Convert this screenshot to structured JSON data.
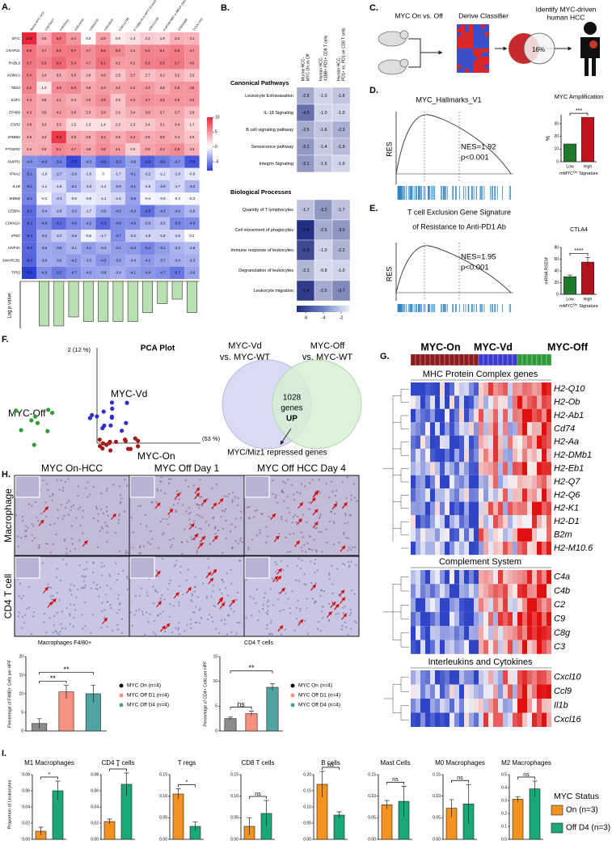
{
  "panel_a": {
    "label": "A.",
    "columns": [
      "Murine MYC-HCC",
      "GSE76427",
      "GSE36411",
      "GSE14564",
      "GSE62232",
      "GSE19665",
      "GSE112790",
      "E-TABM-36.A-AFFY-33.test3",
      "GSE121248",
      "E-MTAB-8887.A-MEXP-2320",
      "GSE63898",
      "TCGA LIHC"
    ],
    "rows": [
      "MYC",
      "CKAP2L",
      "RABL6",
      "KDM1A",
      "TBX3",
      "E2F1",
      "EP400",
      "ESR2",
      "ERBB2",
      "PTGER2",
      "NUPR1",
      "IFNA2",
      "IL1B",
      "IKBKB",
      "CEBPA",
      "CDKN2A",
      "IFNG",
      "HNF4A",
      "SMARCB1",
      "TP53"
    ],
    "cells": [
      [
        "10.6",
        "3.6",
        "5.8",
        "4.4",
        "0.3",
        "3.9",
        "0.9",
        "1.4",
        "2.2",
        "1.9",
        "3.3",
        "3.1"
      ],
      [
        "5.9",
        "4.7",
        "5.6",
        "5.7",
        "4.7",
        "5.6",
        "5.0",
        "4.1",
        "5.2",
        "5.1",
        "5.5",
        "4.7"
      ],
      [
        "5.7",
        "5.3",
        "6.4",
        "5.4",
        "4.7",
        "6.1",
        "4.2",
        "4.2",
        "5.3",
        "5.5",
        "5.7",
        "4.6"
      ],
      [
        "5.4",
        "3.4",
        "3.5",
        "3.9",
        "2.8",
        "4.0",
        "2.5",
        "3.7",
        "2.7",
        "3.2",
        "3.2",
        "2.5"
      ],
      [
        "5.2",
        "1.0",
        "4.8",
        "5.0",
        "3.8",
        "4.3",
        "4.0",
        "4.2",
        "4.3",
        "3.6",
        "4.5",
        "4.5"
      ],
      [
        "4.4",
        "3.5",
        "4.1",
        "3.4",
        "4.0",
        "4.9",
        "2.5",
        "4.3",
        "4.7",
        "4.5",
        "4.5",
        "4.4"
      ],
      [
        "4.3",
        "3.5",
        "4.2",
        "3.8",
        "3.3",
        "3.9",
        "2.6",
        "3.4",
        "3.9",
        "3.7",
        "3.7",
        "2.8"
      ],
      [
        "3.8",
        "3.2",
        "3.3",
        "1.5",
        "1.3",
        "1.4",
        "2.2",
        "2.3",
        "2.4",
        "3.1",
        "3.4",
        "1.7"
      ],
      [
        "3.6",
        "3.4",
        "8.3",
        "3.8",
        "3.5",
        "4.4",
        "3.5",
        "4.4",
        "3.5",
        "3.8",
        "3.4",
        "2.5"
      ],
      [
        "3.4",
        "3.6",
        "5.1",
        "4.7",
        "3.8",
        "4.8",
        "4.1",
        "2.0",
        "3.9",
        "4.4",
        "4.9",
        "3.3"
      ],
      [
        "-4.6",
        "-4.9",
        "-5.3",
        "-7.6",
        "-4.3",
        "-6.0",
        "-5.3",
        "-3.9",
        "-6.6",
        "-5.6",
        "-4.7",
        "-7.0"
      ],
      [
        "-5.1",
        "-1.0",
        "-2.7",
        "-2.9",
        "-1.6",
        "0",
        "-1.7",
        "-4.1",
        "-2.2",
        "-1.1",
        "-1.8",
        "-0.9"
      ],
      [
        "-5.1",
        "-1.1",
        "-1.5",
        "-3.4",
        "-1.9",
        "-1.2",
        "-2.9",
        "-4.1",
        "-1.5",
        "-2.8",
        "-1.7",
        "-3.2"
      ],
      [
        "-5.1",
        "-0.2",
        "-2.3",
        "-0.8",
        "-0.8",
        "-1.1",
        "-1.6",
        "-3.9",
        "-0.4",
        "-0.6",
        "-0.2",
        "-0.3"
      ],
      [
        "-6.1",
        "-3.4",
        "-2.8",
        "-3.5",
        "-1.7",
        "-3.5",
        "-4.3",
        "-4.3",
        "-6.0",
        "-4.3",
        "-4.0",
        "-2.9"
      ],
      [
        "-6.2",
        "-4.8",
        "-6.1",
        "-4.9",
        "-4.2",
        "-6.3",
        "-4.8",
        "-4.6",
        "-3.3",
        "-2.6",
        "-5.0",
        "-4.8"
      ],
      [
        "-6.2",
        "-3.3",
        "-2.2",
        "-2.8",
        "-0.6",
        "-1.7",
        "-4.7",
        "-2.2",
        "-1.8",
        "-1.8",
        "-1.6",
        "0.2"
      ],
      [
        "-6.3",
        "-3.6",
        "-3.8",
        "-3.1",
        "-4.1",
        "-3.4",
        "-4.1",
        "-4.3",
        "-5.1",
        "-4.1",
        "-3.2",
        "-2.8"
      ],
      [
        "-6.4",
        "-3.6",
        "-3.6",
        "-4.2",
        "-3.5",
        "-4.5",
        "-3.9",
        "-3.4",
        "-4.2",
        "-3.7",
        "-3.4",
        "-3.3"
      ],
      [
        "-8.5",
        "-4.6",
        "-5.5",
        "-4.7",
        "-4.0",
        "-3.8",
        "-3.4",
        "-4.1",
        "-4.4",
        "-4.7",
        "-5.7",
        "-3.8"
      ]
    ],
    "colorbar_ticks": [
      10,
      5,
      0,
      -5
    ],
    "log_p_label": "Log p value",
    "log_p_bars": [
      null,
      10,
      10,
      8,
      9,
      9,
      9,
      9,
      7,
      5,
      4,
      7
    ]
  },
  "panel_b": {
    "label": "B.",
    "columns": [
      [
        "Murine HCC-",
        "MYC On vs Off"
      ],
      [
        "Human HCC-",
        "41BB+ PD1+ CD8 T cells"
      ],
      [
        "Human HCC-",
        "PD1+ vs. PD1-ve CD8 T cells"
      ]
    ],
    "sections": [
      {
        "title": "Canonical Pathways",
        "rows": [
          "Leukocyte Extravasation",
          "IL-18 Signaling",
          "B cell signaling pathway",
          "Senescence pathway",
          "Integrin Signaling"
        ],
        "cells": [
          [
            "-2.5",
            "-1.0",
            "-1.6"
          ],
          [
            "-4.5",
            "-1.0",
            "-1.0"
          ],
          [
            "-2.5",
            "-1.6",
            "-2.3"
          ],
          [
            "-3.1",
            "-1.4",
            "-1.9"
          ],
          [
            "-3.1",
            "-1.5",
            "-1.0"
          ]
        ]
      },
      {
        "title": "Biological Processes",
        "rows": [
          "Quantity of T lymphocytes",
          "Cell movement of phagocytes",
          "Immune response of leukocytes",
          "Degranulation of leukocytes",
          "Leukocyte migration"
        ],
        "cells": [
          [
            "-1.7",
            "-3.2",
            "-1.7"
          ],
          [
            "-6.8",
            "-2.5",
            "-3.2"
          ],
          [
            "-5.9",
            "-1.0",
            "-2.2"
          ],
          [
            "-2.1",
            "-0.8",
            "-1.0"
          ],
          [
            "-6.4",
            "-2.5",
            "-3.7"
          ]
        ]
      }
    ],
    "colorbar_ticks": [
      -6,
      -4,
      -2
    ]
  },
  "panel_c": {
    "label": "C.",
    "step1": "MYC On vs. Off",
    "step2": "Derive Classifier",
    "step3": [
      "Identify MYC-driven",
      "human HCC"
    ],
    "percent": "16%"
  },
  "panel_d": {
    "label": "D.",
    "title": "MYC_Hallmarks_V1",
    "nes": "NES=1.92",
    "p": "p<0.001",
    "ylabel": "RES"
  },
  "panel_e": {
    "label": "E.",
    "title": [
      "T cell Exclusion Gene Signature",
      "of Resistance to Anti-PD1 Ab"
    ],
    "nes": "NES=1.95",
    "p": "p<0.001",
    "ylabel": "RES"
  },
  "panel_f": {
    "label": "F.",
    "title": "PCA Plot",
    "y_axis": "2 (12 %)",
    "x_axis": "(53 %)",
    "groups": [
      "MYC-Off",
      "MYC-Vd",
      "MYC-On"
    ],
    "venn_left": [
      "MYC-Vd",
      "vs. MYC-WT"
    ],
    "venn_right": [
      "MYC-Off",
      "vs. MYC-WT"
    ],
    "venn_center": [
      "1028",
      "genes",
      "UP"
    ],
    "venn_note": "MYC/Miz1 repressed genes"
  },
  "panel_g": {
    "label": "G.",
    "groups": [
      "MYC-On",
      "MYC-Vd",
      "MYC-Off"
    ],
    "group_colors": [
      "#8b1a1a",
      "#3a3ad0",
      "#2e9a3a"
    ],
    "sections": [
      {
        "title": "MHC Protein Complex genes",
        "genes": [
          "H2-Q10",
          "H2-Ob",
          "H2-Ab1",
          "Cd74",
          "H2-Aa",
          "H2-DMb1",
          "H2-Eb1",
          "H2-Q7",
          "H2-Q6",
          "H2-K1",
          "H2-D1",
          "B2m",
          "H2-M10.6"
        ]
      },
      {
        "title": "Complement System",
        "genes": [
          "C4a",
          "C4b",
          "C2",
          "C9",
          "C8g",
          "C3"
        ]
      },
      {
        "title": "Interleukins and Cytokines",
        "genes": [
          "Cxcl10",
          "Ccl9",
          "Il1b",
          "Cxcl16"
        ]
      }
    ]
  },
  "panel_h": {
    "label": "H.",
    "columns": [
      "MYC On-HCC",
      "MYC Off Day 1",
      "MYC Off HCC Day 4"
    ],
    "rows": [
      "Macrophage",
      "CD4 T cell"
    ],
    "caption_left": "Macrophages F4/80+",
    "caption_right": "CD4 T cells"
  },
  "panel_i": {
    "label": "I.",
    "ylabel": "Proportion of Leukocytes",
    "legend_title": "MYC Status",
    "legend": [
      "On (n=3)",
      "Off D4 (n=3)"
    ],
    "colors": [
      "#f39221",
      "#1aa878"
    ]
  },
  "chart_data": [
    {
      "type": "bar",
      "title": "MYC Amplification",
      "ylabel": "%",
      "xlabel": [
        "mMYC",
        "On",
        "Signature"
      ],
      "categories": [
        "Low",
        "High"
      ],
      "values": [
        14,
        35
      ],
      "colors": [
        "#1d7a2b",
        "#c0141c"
      ],
      "ylim": [
        0,
        37
      ],
      "yticks": [
        0,
        10,
        20,
        30
      ],
      "annotations": [
        "***"
      ]
    },
    {
      "type": "bar",
      "title": "CTLA4",
      "ylabel": "mRNA RSEM",
      "xlabel": [
        "mMYC",
        "On",
        "Signature"
      ],
      "categories": [
        "Low",
        "High"
      ],
      "values": [
        30,
        55
      ],
      "errors": [
        3,
        8
      ],
      "colors": [
        "#1d7a2b",
        "#b0141c"
      ],
      "ylim": [
        0,
        80
      ],
      "yticks": [
        0,
        20,
        40,
        60,
        80
      ],
      "annotations": [
        "****"
      ]
    },
    {
      "type": "bar",
      "ylabel": "Percentage of F4/80+ Cells per HPF",
      "categories": [
        "MYC On (n=4)",
        "MYC Off D1 (n=4)",
        "MYC Off D4 (n=4)"
      ],
      "values": [
        2,
        10.5,
        10
      ],
      "errors": [
        1.3,
        1.8,
        2.3
      ],
      "colors": [
        "#8c8c8c",
        "#f4917f",
        "#4fa3a0"
      ],
      "ylim": [
        0,
        20
      ],
      "yticks": [
        0,
        5,
        10,
        15,
        20
      ],
      "annotations": [
        "**",
        "**"
      ]
    },
    {
      "type": "bar",
      "ylabel": "Percentage of CD4+ Cells per HPF",
      "categories": [
        "MYC On (n=4)",
        "MYC Off D1 (n=4)",
        "MYC Off D4 (n=4)"
      ],
      "values": [
        2.5,
        3.5,
        8.8
      ],
      "errors": [
        0.3,
        0.5,
        0.7
      ],
      "colors": [
        "#8c8c8c",
        "#f4917f",
        "#4fa3a0"
      ],
      "ylim": [
        0,
        15
      ],
      "yticks": [
        0,
        5,
        10,
        15
      ],
      "annotations": [
        "ns",
        "**"
      ]
    },
    {
      "type": "bar",
      "title": "M1 Macrophages",
      "values": [
        0.01,
        0.06
      ],
      "errors": [
        0.005,
        0.012
      ],
      "ylim": [
        0,
        0.08
      ],
      "yticks": [
        {
          "value": 0,
          "label": "0.00"
        },
        0.02,
        0.04,
        0.06,
        0.08
      ],
      "annotations": [
        "*"
      ]
    },
    {
      "type": "bar",
      "title": "CD4 T cells",
      "values": [
        0.022,
        0.068
      ],
      "errors": [
        0.003,
        0.014
      ],
      "ylim": [
        0,
        0.08
      ],
      "yticks": [
        {
          "value": 0,
          "label": "0.00"
        },
        0.02,
        0.04,
        0.06,
        0.08
      ],
      "annotations": [
        "*"
      ]
    },
    {
      "type": "bar",
      "title": "T regs",
      "values": [
        0.105,
        0.03
      ],
      "errors": [
        0.012,
        0.01
      ],
      "ylim": [
        0,
        0.15
      ],
      "yticks": [
        {
          "value": 0,
          "label": "0.00"
        },
        0.05,
        {
          "value": 0.1,
          "label": "0.10"
        },
        0.15
      ],
      "annotations": [
        "*"
      ]
    },
    {
      "type": "bar",
      "title": "CD8 T cells",
      "values": [
        0.03,
        0.06
      ],
      "errors": [
        0.02,
        0.03
      ],
      "ylim": [
        0,
        0.15
      ],
      "yticks": [
        {
          "value": 0,
          "label": "0.00"
        },
        0.05,
        {
          "value": 0.1,
          "label": "0.10"
        },
        0.15
      ],
      "annotations": [
        "ns"
      ]
    },
    {
      "type": "bar",
      "title": "B cells",
      "values": [
        0.17,
        0.075
      ],
      "errors": [
        0.04,
        0.01
      ],
      "ylim": [
        0,
        0.2
      ],
      "yticks": [
        {
          "value": 0,
          "label": "0.00"
        },
        0.05,
        {
          "value": 0.1,
          "label": "0.10"
        },
        0.15,
        {
          "value": 0.2,
          "label": "0.20"
        }
      ],
      "annotations": [
        "ns"
      ]
    },
    {
      "type": "bar",
      "title": "Mast Cells",
      "values": [
        0.08,
        0.088
      ],
      "errors": [
        0.01,
        0.035
      ],
      "ylim": [
        0,
        0.15
      ],
      "yticks": [
        {
          "value": 0,
          "label": "0.00"
        },
        0.05,
        {
          "value": 0.1,
          "label": "0.10"
        },
        0.15
      ],
      "annotations": [
        "ns"
      ]
    },
    {
      "type": "bar",
      "title": "M0 Macrophages",
      "values": [
        0.072,
        0.082
      ],
      "errors": [
        0.02,
        0.045
      ],
      "ylim": [
        0,
        0.15
      ],
      "yticks": [
        {
          "value": 0,
          "label": "0.00"
        },
        0.05,
        {
          "value": 0.1,
          "label": "0.10"
        },
        0.15
      ],
      "annotations": [
        "ns"
      ]
    },
    {
      "type": "bar",
      "title": "M2 Macrophages",
      "values": [
        0.31,
        0.39
      ],
      "errors": [
        0.02,
        0.06
      ],
      "ylim": [
        0,
        0.5
      ],
      "yticks": [
        {
          "value": 0,
          "label": "0.0"
        },
        0.1,
        0.2,
        0.3,
        0.4,
        0.5
      ],
      "annotations": [
        "ns"
      ]
    }
  ]
}
